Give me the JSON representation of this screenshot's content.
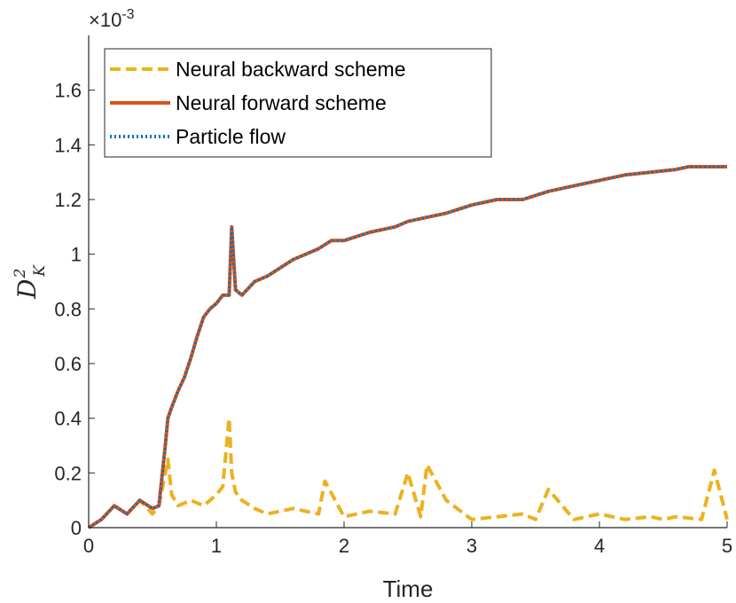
{
  "chart_data": {
    "type": "line",
    "title": "",
    "xlabel": "Time",
    "ylabel": "D",
    "ylabel_sup": "2",
    "ylabel_sub": "K",
    "y_exponent": "×10",
    "y_exponent_power": "-3",
    "xlim": [
      0,
      5
    ],
    "ylim": [
      0,
      1.8
    ],
    "xticks": [
      "0",
      "1",
      "2",
      "3",
      "4",
      "5"
    ],
    "yticks": [
      "0",
      "0.2",
      "0.4",
      "0.6",
      "0.8",
      "1",
      "1.2",
      "1.4",
      "1.6"
    ],
    "legend_position": "top-left",
    "series": [
      {
        "name": "Neural backward scheme",
        "color": "#EDB120",
        "style": "dashed",
        "x": [
          0,
          0.1,
          0.2,
          0.3,
          0.4,
          0.5,
          0.55,
          0.6,
          0.62,
          0.65,
          0.7,
          0.8,
          0.9,
          1.0,
          1.05,
          1.1,
          1.12,
          1.15,
          1.2,
          1.3,
          1.4,
          1.5,
          1.6,
          1.8,
          1.85,
          2.0,
          2.2,
          2.4,
          2.5,
          2.6,
          2.65,
          2.8,
          3.0,
          3.2,
          3.4,
          3.5,
          3.6,
          3.8,
          4.0,
          4.2,
          4.4,
          4.5,
          4.6,
          4.8,
          4.9,
          5.0
        ],
        "values": [
          0.0,
          0.03,
          0.08,
          0.05,
          0.1,
          0.05,
          0.08,
          0.2,
          0.25,
          0.12,
          0.08,
          0.1,
          0.08,
          0.12,
          0.15,
          0.4,
          0.2,
          0.13,
          0.1,
          0.07,
          0.05,
          0.06,
          0.07,
          0.05,
          0.17,
          0.04,
          0.06,
          0.05,
          0.2,
          0.04,
          0.23,
          0.1,
          0.03,
          0.04,
          0.05,
          0.03,
          0.14,
          0.03,
          0.05,
          0.03,
          0.04,
          0.03,
          0.04,
          0.03,
          0.21,
          0.03
        ]
      },
      {
        "name": "Neural forward scheme",
        "color": "#D95319",
        "style": "solid",
        "x": [
          0,
          0.1,
          0.2,
          0.3,
          0.4,
          0.5,
          0.55,
          0.6,
          0.62,
          0.65,
          0.7,
          0.75,
          0.8,
          0.85,
          0.9,
          0.95,
          1.0,
          1.05,
          1.1,
          1.12,
          1.15,
          1.2,
          1.3,
          1.4,
          1.5,
          1.6,
          1.7,
          1.8,
          1.9,
          2.0,
          2.2,
          2.4,
          2.5,
          2.6,
          2.8,
          3.0,
          3.2,
          3.4,
          3.6,
          3.8,
          4.0,
          4.2,
          4.4,
          4.6,
          4.7,
          4.8,
          5.0
        ],
        "values": [
          0.0,
          0.03,
          0.08,
          0.05,
          0.1,
          0.07,
          0.08,
          0.3,
          0.4,
          0.44,
          0.5,
          0.55,
          0.62,
          0.7,
          0.77,
          0.8,
          0.82,
          0.85,
          0.85,
          1.1,
          0.87,
          0.85,
          0.9,
          0.92,
          0.95,
          0.98,
          1.0,
          1.02,
          1.05,
          1.05,
          1.08,
          1.1,
          1.12,
          1.13,
          1.15,
          1.18,
          1.2,
          1.2,
          1.23,
          1.25,
          1.27,
          1.29,
          1.3,
          1.31,
          1.32,
          1.32,
          1.32
        ]
      },
      {
        "name": "Particle flow",
        "color": "#0072BD",
        "style": "dotted",
        "x": [
          0,
          0.1,
          0.2,
          0.3,
          0.4,
          0.5,
          0.55,
          0.6,
          0.62,
          0.65,
          0.7,
          0.75,
          0.8,
          0.85,
          0.9,
          0.95,
          1.0,
          1.05,
          1.1,
          1.12,
          1.15,
          1.2,
          1.3,
          1.4,
          1.5,
          1.6,
          1.7,
          1.8,
          1.9,
          2.0,
          2.2,
          2.4,
          2.5,
          2.6,
          2.8,
          3.0,
          3.2,
          3.4,
          3.6,
          3.8,
          4.0,
          4.2,
          4.4,
          4.6,
          4.7,
          4.8,
          5.0
        ],
        "values": [
          0.0,
          0.03,
          0.08,
          0.05,
          0.1,
          0.07,
          0.08,
          0.3,
          0.4,
          0.44,
          0.5,
          0.55,
          0.62,
          0.7,
          0.77,
          0.8,
          0.82,
          0.85,
          0.85,
          1.1,
          0.87,
          0.85,
          0.9,
          0.92,
          0.95,
          0.98,
          1.0,
          1.02,
          1.05,
          1.05,
          1.08,
          1.1,
          1.12,
          1.13,
          1.15,
          1.18,
          1.2,
          1.2,
          1.23,
          1.25,
          1.27,
          1.29,
          1.3,
          1.31,
          1.32,
          1.32,
          1.32
        ]
      }
    ]
  }
}
